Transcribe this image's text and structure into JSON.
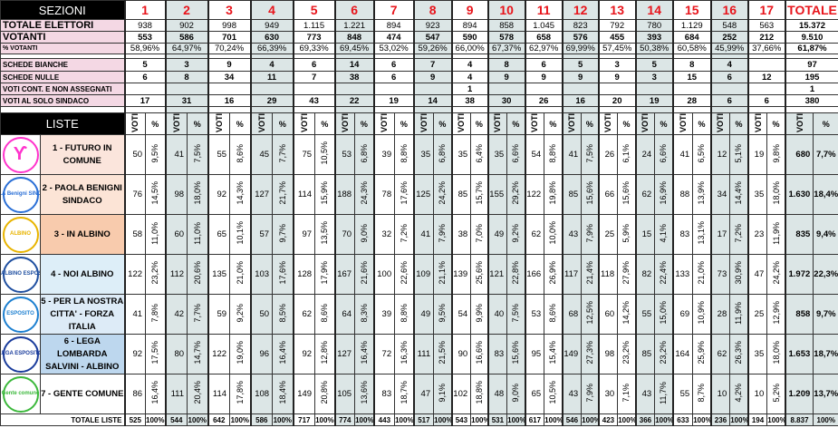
{
  "header": {
    "sezioni_label": "SEZIONI",
    "sections": [
      "1",
      "2",
      "3",
      "4",
      "5",
      "6",
      "7",
      "8",
      "9",
      "10",
      "11",
      "12",
      "13",
      "14",
      "15",
      "16",
      "17"
    ],
    "totale_label": "TOTALE"
  },
  "summary_rows": [
    {
      "label": "TOTALE ELETTORI",
      "style": "big",
      "values": [
        "938",
        "902",
        "998",
        "949",
        "1.115",
        "1.221",
        "894",
        "923",
        "894",
        "858",
        "1.045",
        "823",
        "792",
        "780",
        "1.129",
        "548",
        "563"
      ],
      "total": "15.372"
    },
    {
      "label": "VOTANTI",
      "style": "big-bold",
      "values": [
        "553",
        "586",
        "701",
        "630",
        "773",
        "848",
        "474",
        "547",
        "590",
        "578",
        "658",
        "576",
        "455",
        "393",
        "684",
        "252",
        "212"
      ],
      "total": "9.510"
    },
    {
      "label": "% VOTANTI",
      "style": "small",
      "values": [
        "58,96%",
        "64,97%",
        "70,24%",
        "66,39%",
        "69,33%",
        "69,45%",
        "53,02%",
        "59,26%",
        "66,00%",
        "67,37%",
        "62,97%",
        "69,99%",
        "57,45%",
        "50,38%",
        "60,58%",
        "45,99%",
        "37,66%"
      ],
      "total": "61,87%"
    },
    {
      "spacer": true
    },
    {
      "label": "SCHEDE   BIANCHE",
      "style": "bold",
      "values": [
        "5",
        "3",
        "9",
        "4",
        "6",
        "14",
        "6",
        "7",
        "4",
        "8",
        "6",
        "5",
        "3",
        "5",
        "8",
        "4",
        ""
      ],
      "total": "97"
    },
    {
      "label": "SCHEDE   NULLE",
      "style": "bold",
      "values": [
        "6",
        "8",
        "34",
        "11",
        "7",
        "38",
        "6",
        "9",
        "4",
        "9",
        "9",
        "9",
        "9",
        "3",
        "15",
        "6",
        "12"
      ],
      "total": "195"
    },
    {
      "label": "VOTI CONT.  E NON ASSEGNATI",
      "style": "bold",
      "values": [
        "",
        "",
        "",
        "",
        "",
        "",
        "",
        "",
        "1",
        "",
        "",
        "",
        "",
        "",
        "",
        "",
        ""
      ],
      "total": "1"
    },
    {
      "label": "VOTI AL SOLO SINDACO",
      "style": "bold",
      "values": [
        "17",
        "31",
        "16",
        "29",
        "43",
        "22",
        "19",
        "14",
        "38",
        "30",
        "26",
        "16",
        "20",
        "19",
        "28",
        "6",
        "6"
      ],
      "total": "380"
    },
    {
      "spacer": true
    }
  ],
  "liste": {
    "label": "LISTE",
    "col_voti": "VOTI",
    "col_pct": "%",
    "parties": [
      {
        "name": "1 - FUTURO IN COMUNE",
        "logo_text": "ϒ",
        "logo_color": "#ff33cc",
        "name_bg": "#fbe5dc",
        "votes": [
          "50",
          "41",
          "55",
          "45",
          "75",
          "53",
          "39",
          "35",
          "35",
          "35",
          "54",
          "41",
          "26",
          "24",
          "41",
          "12",
          "19"
        ],
        "pcts": [
          "9,5%",
          "7,5%",
          "8,6%",
          "7,7%",
          "10,5%",
          "6,8%",
          "8,8%",
          "6,8%",
          "6,4%",
          "6,6%",
          "8,8%",
          "7,5%",
          "6,1%",
          "6,6%",
          "6,5%",
          "5,1%",
          "9,8%"
        ],
        "total_votes": "680",
        "total_pct": "7,7%"
      },
      {
        "name": "2 - PAOLA BENIGNI SINDACO",
        "logo_text": "PAOLA Benigni SINDACO",
        "logo_color": "#2a6fd6",
        "name_bg": "#fce4d6",
        "votes": [
          "76",
          "98",
          "92",
          "127",
          "114",
          "188",
          "78",
          "125",
          "85",
          "155",
          "122",
          "85",
          "66",
          "62",
          "88",
          "34",
          "35"
        ],
        "pcts": [
          "14,5%",
          "18,0%",
          "14,3%",
          "21,7%",
          "15,9%",
          "24,3%",
          "17,6%",
          "24,2%",
          "15,7%",
          "29,2%",
          "19,8%",
          "15,6%",
          "15,6%",
          "16,9%",
          "13,9%",
          "14,4%",
          "18,0%"
        ],
        "total_votes": "1.630",
        "total_pct": "18,4%"
      },
      {
        "name": "3 - IN ALBINO",
        "logo_text": "ALBINO",
        "logo_color": "#e8b400",
        "name_bg": "#f8cbad",
        "votes": [
          "58",
          "60",
          "65",
          "57",
          "97",
          "70",
          "32",
          "41",
          "38",
          "49",
          "62",
          "43",
          "25",
          "15",
          "83",
          "17",
          "23"
        ],
        "pcts": [
          "11,0%",
          "11,0%",
          "10,1%",
          "9,7%",
          "13,5%",
          "9,0%",
          "7,2%",
          "7,9%",
          "7,0%",
          "9,2%",
          "10,0%",
          "7,9%",
          "5,9%",
          "4,1%",
          "13,1%",
          "7,2%",
          "11,9%"
        ],
        "total_votes": "835",
        "total_pct": "9,4%"
      },
      {
        "name": "4 - NOI ALBINO",
        "logo_text": "NOI ALBINO ESPOSITO",
        "logo_color": "#1f4fa0",
        "name_bg": "#ddeef8",
        "votes": [
          "122",
          "112",
          "135",
          "103",
          "128",
          "167",
          "100",
          "109",
          "139",
          "121",
          "166",
          "117",
          "118",
          "82",
          "133",
          "73",
          "47"
        ],
        "pcts": [
          "23,2%",
          "20,6%",
          "21,0%",
          "17,6%",
          "17,9%",
          "21,6%",
          "22,6%",
          "21,1%",
          "25,6%",
          "22,8%",
          "26,9%",
          "21,4%",
          "27,9%",
          "22,4%",
          "21,0%",
          "30,9%",
          "24,2%"
        ],
        "total_votes": "1.972",
        "total_pct": "22,3%"
      },
      {
        "name": "5 - PER LA NOSTRA CITTA' - FORZA ITALIA",
        "logo_text": "ESPOSITO",
        "logo_color": "#1c7fd0",
        "name_bg": "#ddebf7",
        "votes": [
          "41",
          "42",
          "59",
          "50",
          "62",
          "64",
          "39",
          "49",
          "54",
          "40",
          "53",
          "68",
          "60",
          "55",
          "69",
          "28",
          "25"
        ],
        "pcts": [
          "7,8%",
          "7,7%",
          "9,2%",
          "8,5%",
          "8,6%",
          "8,3%",
          "8,8%",
          "9,5%",
          "9,9%",
          "7,5%",
          "8,6%",
          "12,5%",
          "14,2%",
          "15,0%",
          "10,9%",
          "11,9%",
          "12,9%"
        ],
        "total_votes": "858",
        "total_pct": "9,7%"
      },
      {
        "name": "6 - LEGA LOMBARDA SALVINI - ALBINO",
        "logo_text": "LEGA ESPOSITO",
        "logo_color": "#1a3c9c",
        "name_bg": "#bdd7ee",
        "votes": [
          "92",
          "80",
          "122",
          "96",
          "92",
          "127",
          "72",
          "111",
          "90",
          "83",
          "95",
          "149",
          "98",
          "85",
          "164",
          "62",
          "35"
        ],
        "pcts": [
          "17,5%",
          "14,7%",
          "19,0%",
          "16,4%",
          "12,8%",
          "16,4%",
          "16,3%",
          "21,5%",
          "16,6%",
          "15,6%",
          "15,4%",
          "27,3%",
          "23,2%",
          "23,2%",
          "25,9%",
          "26,3%",
          "18,0%"
        ],
        "total_votes": "1.653",
        "total_pct": "18,7%"
      },
      {
        "name": "7 - GENTE COMUNE",
        "logo_text": "Gente comune",
        "logo_color": "#3cb83c",
        "name_bg": "#ffffff",
        "votes": [
          "86",
          "111",
          "114",
          "108",
          "149",
          "105",
          "83",
          "47",
          "102",
          "48",
          "65",
          "43",
          "30",
          "43",
          "55",
          "10",
          "10"
        ],
        "pcts": [
          "16,4%",
          "20,4%",
          "17,8%",
          "18,4%",
          "20,8%",
          "13,6%",
          "18,7%",
          "9,1%",
          "18,8%",
          "9,0%",
          "10,5%",
          "7,9%",
          "7,1%",
          "11,7%",
          "8,7%",
          "4,2%",
          "5,2%"
        ],
        "total_votes": "1.209",
        "total_pct": "13,7%"
      }
    ],
    "totals": {
      "label": "TOTALE LISTE",
      "votes": [
        "525",
        "544",
        "642",
        "586",
        "717",
        "774",
        "443",
        "517",
        "543",
        "531",
        "617",
        "546",
        "423",
        "366",
        "633",
        "236",
        "194"
      ],
      "pct": "100%",
      "total_votes": "8.837",
      "total_pct": "100%"
    }
  },
  "colors": {
    "label_bg": "#f4d8e4",
    "shade": "#dce6e6",
    "section_number": "#e8141b",
    "header_bg": "#000000"
  }
}
